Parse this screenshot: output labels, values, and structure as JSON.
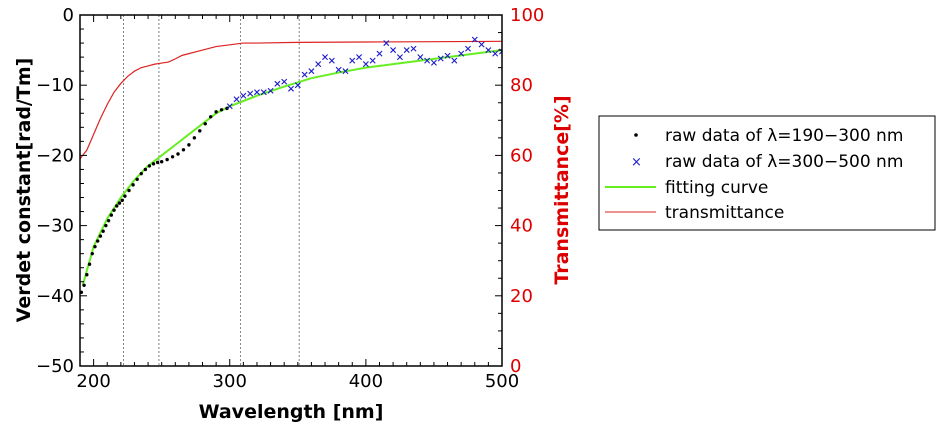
{
  "chart_data": {
    "type": "scatter",
    "xlabel": "Wavelength [nm]",
    "ylabel_left": "Verdet constant[rad/Tm]",
    "ylabel_right": "Transmittance[%]",
    "xlim": [
      190,
      500
    ],
    "ylim_left": [
      -50,
      0
    ],
    "ylim_right": [
      0,
      100
    ],
    "x_ticks": [
      "200",
      "300",
      "400",
      "500"
    ],
    "y_ticks_left": [
      "0",
      "−10",
      "−20",
      "−30",
      "−40",
      "−50"
    ],
    "y_ticks_right": [
      "100",
      "80",
      "60",
      "40",
      "20",
      "0"
    ],
    "vertical_reference_lines": [
      222,
      248,
      308,
      351
    ],
    "colors": {
      "raw_uv": "#000000",
      "raw_vis": "#1a1acc",
      "fit": "#66ee22",
      "transmittance": "#dd2222",
      "right_axis": "#dd0000"
    },
    "legend": {
      "placement": "right",
      "entries": [
        {
          "symbol": "·",
          "label": "raw data of λ=190−300 nm"
        },
        {
          "symbol": "×",
          "label": "raw data of λ=300−500 nm"
        },
        {
          "symbol": "line",
          "label": "fitting curve"
        },
        {
          "symbol": "line",
          "label": "transmittance"
        }
      ]
    },
    "series": [
      {
        "name": "raw data of λ=190−300 nm",
        "axis": "left",
        "marker": "dot",
        "x": [
          191,
          193,
          195,
          197,
          199,
          201,
          203,
          205,
          207,
          209,
          211,
          213,
          215,
          217,
          219,
          221,
          223,
          226,
          229,
          232,
          235,
          238,
          241,
          244,
          247,
          250,
          254,
          258,
          262,
          266,
          270,
          274,
          278,
          282,
          286,
          290,
          294,
          298
        ],
        "y": [
          -39.5,
          -38.5,
          -37.0,
          -35.5,
          -34.0,
          -33.0,
          -32.2,
          -31.5,
          -30.8,
          -30.0,
          -29.3,
          -28.5,
          -27.8,
          -27.2,
          -26.8,
          -26.4,
          -25.8,
          -25.0,
          -24.2,
          -23.4,
          -22.6,
          -22.0,
          -21.5,
          -21.2,
          -21.0,
          -20.9,
          -20.6,
          -20.2,
          -19.8,
          -19.2,
          -18.5,
          -17.5,
          -16.5,
          -15.5,
          -14.5,
          -13.8,
          -13.5,
          -13.3
        ]
      },
      {
        "name": "raw data of λ=300−500 nm",
        "axis": "left",
        "marker": "x",
        "x": [
          300,
          305,
          310,
          315,
          320,
          325,
          330,
          335,
          340,
          345,
          350,
          355,
          360,
          365,
          370,
          375,
          380,
          385,
          390,
          395,
          400,
          405,
          410,
          415,
          420,
          425,
          430,
          435,
          440,
          445,
          450,
          455,
          460,
          465,
          470,
          475,
          480,
          485,
          490,
          495,
          500
        ],
        "y": [
          -13.0,
          -12.0,
          -11.5,
          -11.2,
          -11.0,
          -11.0,
          -10.8,
          -9.8,
          -9.5,
          -10.5,
          -10.0,
          -8.5,
          -8.0,
          -7.0,
          -6.0,
          -6.5,
          -7.8,
          -8.0,
          -6.5,
          -6.0,
          -7.0,
          -6.5,
          -5.5,
          -4.0,
          -5.0,
          -6.0,
          -5.0,
          -4.8,
          -6.0,
          -6.5,
          -6.8,
          -6.2,
          -5.8,
          -6.5,
          -5.5,
          -4.8,
          -3.5,
          -4.2,
          -5.0,
          -5.5,
          -5.2
        ]
      },
      {
        "name": "fitting curve",
        "axis": "left",
        "marker": "line",
        "x": [
          192,
          200,
          210,
          220,
          230,
          240,
          250,
          260,
          270,
          280,
          290,
          300,
          320,
          340,
          360,
          380,
          400,
          420,
          440,
          460,
          480,
          500
        ],
        "y": [
          -38.5,
          -33.0,
          -29.0,
          -26.0,
          -23.5,
          -21.5,
          -20.0,
          -18.5,
          -17.0,
          -15.5,
          -14.0,
          -13.0,
          -11.5,
          -10.2,
          -9.0,
          -8.2,
          -7.5,
          -7.0,
          -6.5,
          -6.0,
          -5.5,
          -5.0
        ]
      },
      {
        "name": "transmittance",
        "axis": "right",
        "marker": "line",
        "x": [
          190,
          195,
          200,
          205,
          210,
          215,
          220,
          225,
          230,
          235,
          240,
          245,
          250,
          255,
          260,
          265,
          270,
          280,
          290,
          300,
          310,
          320,
          350,
          400,
          450,
          500
        ],
        "y": [
          59.0,
          61.5,
          66.0,
          70.5,
          74.5,
          78.0,
          80.5,
          82.5,
          84.0,
          85.0,
          85.5,
          86.0,
          86.3,
          86.6,
          87.5,
          88.5,
          89.0,
          90.0,
          91.0,
          91.5,
          92.0,
          92.0,
          92.2,
          92.3,
          92.4,
          92.5
        ]
      }
    ]
  }
}
